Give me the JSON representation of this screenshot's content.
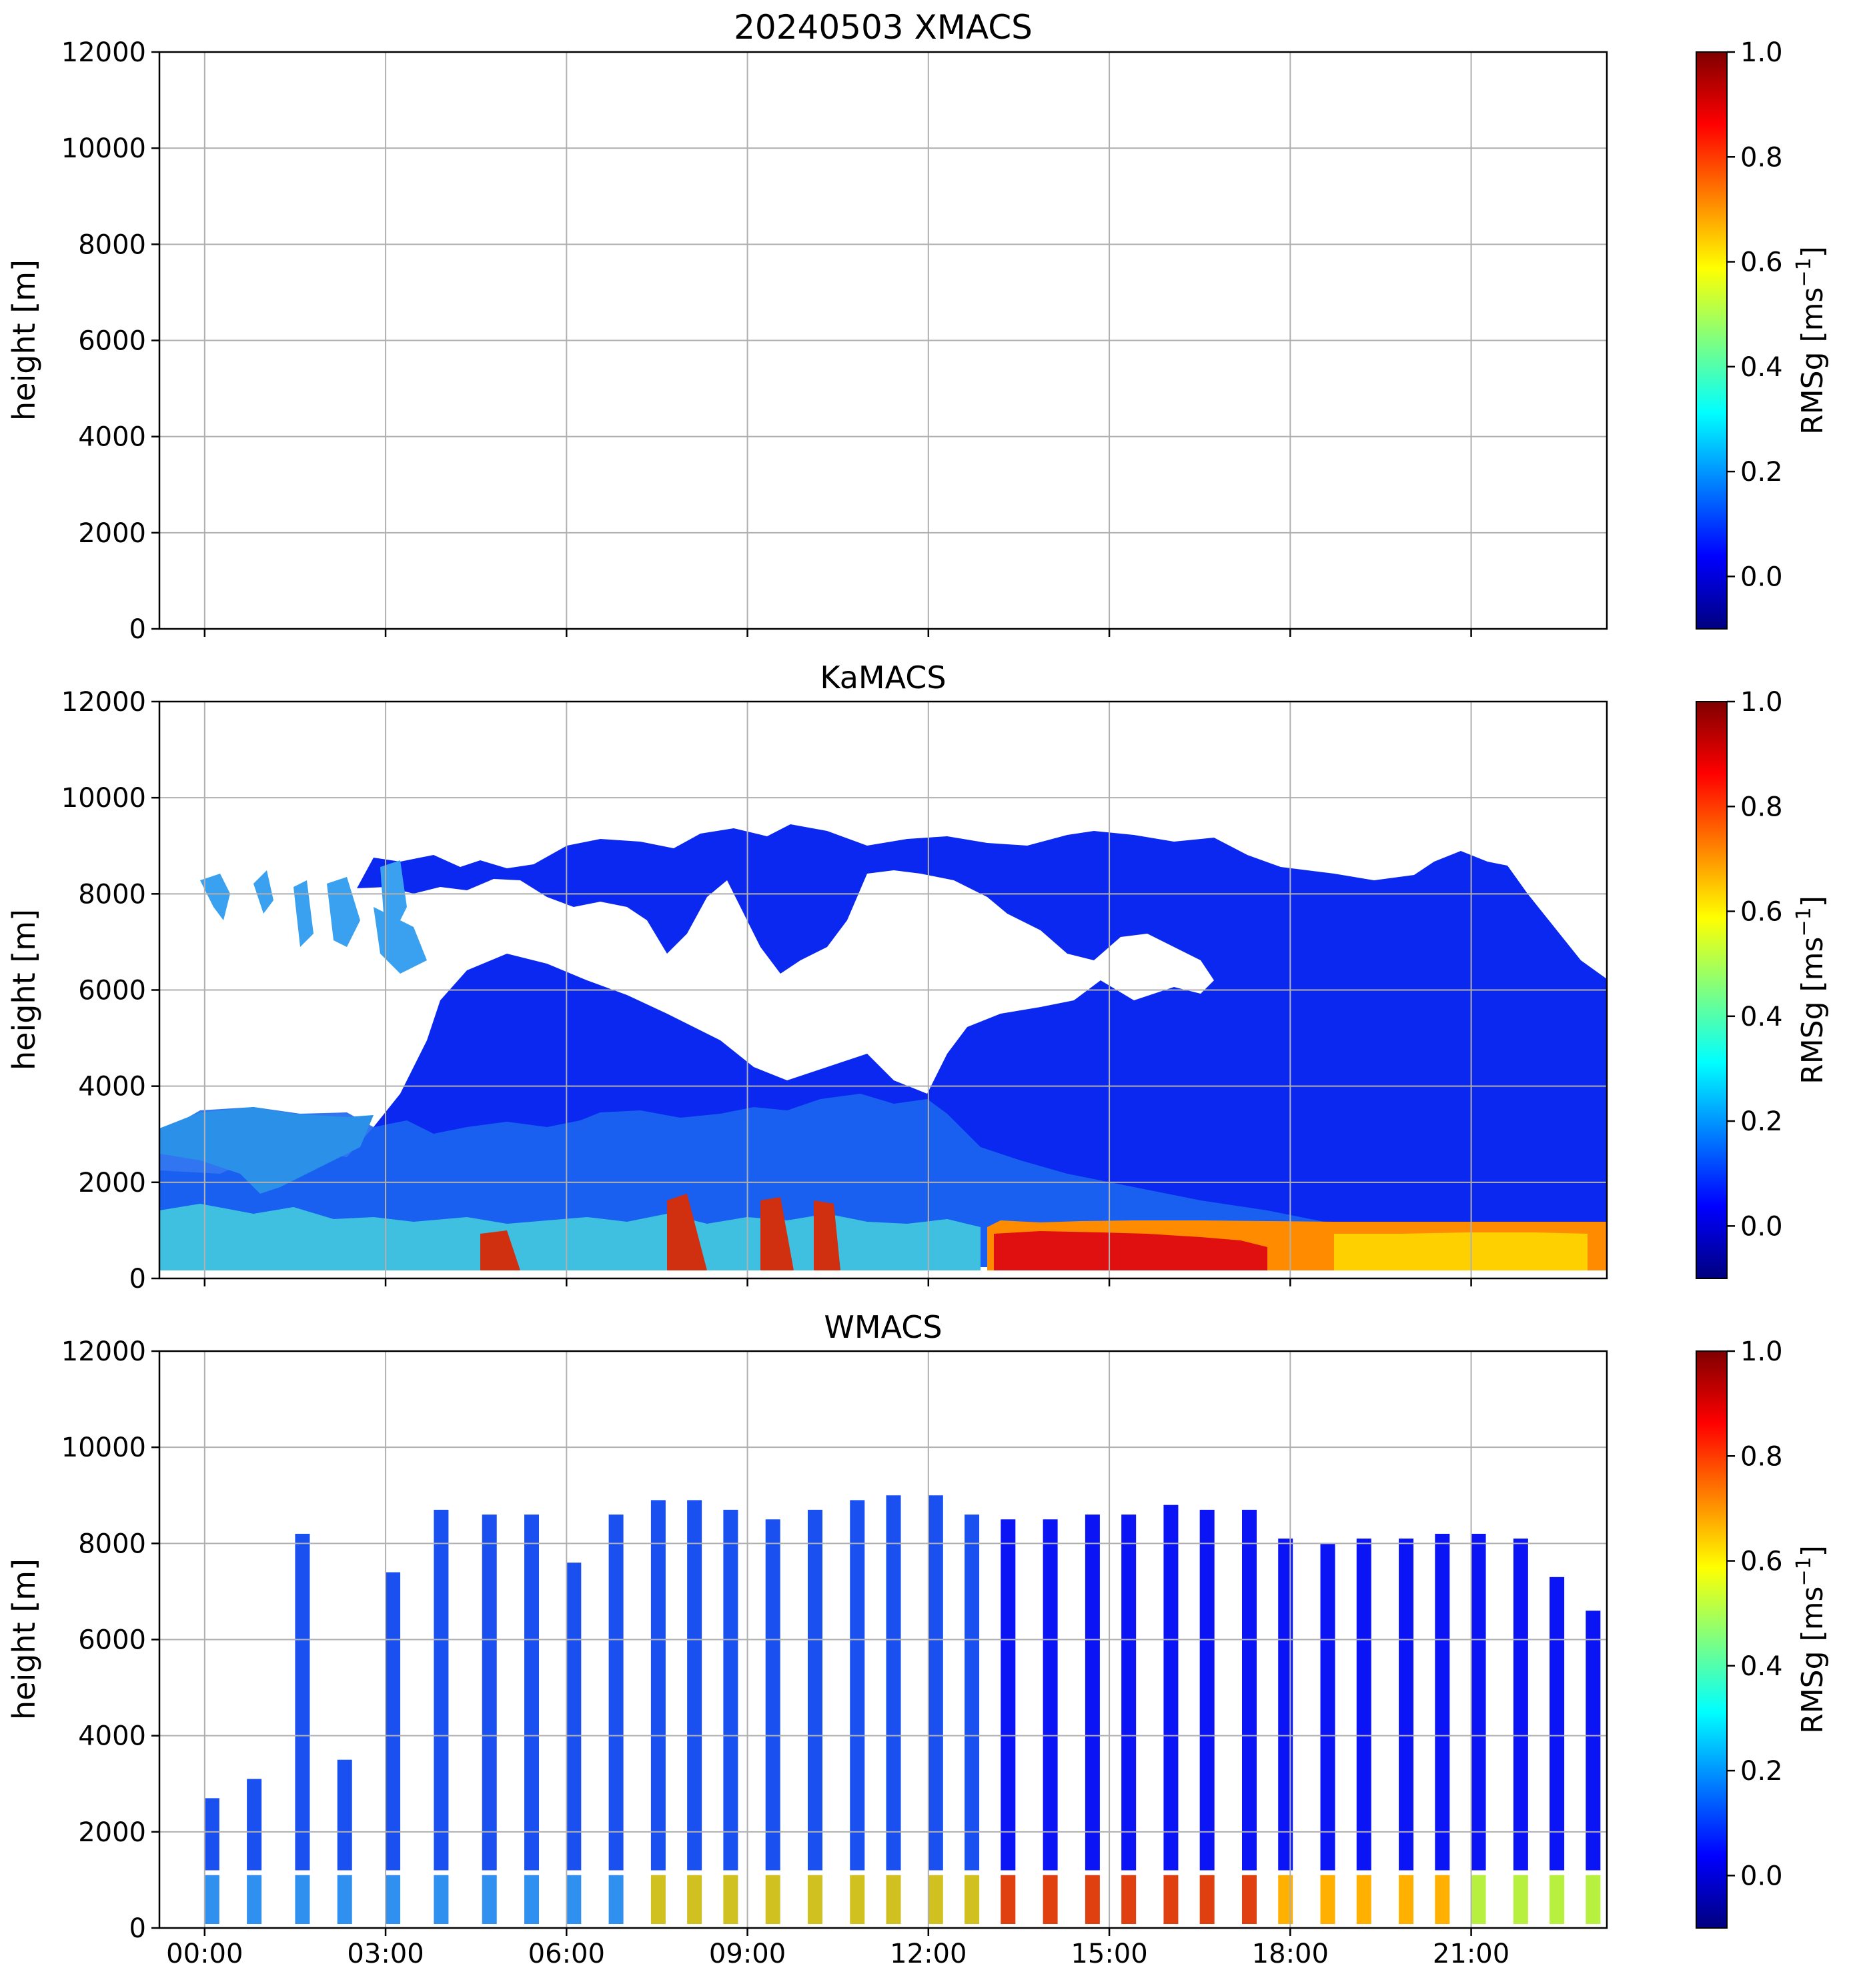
{
  "figure": {
    "colormap": [
      "#00007f",
      "#0000ff",
      "#007fff",
      "#00ffff",
      "#7fff7f",
      "#ffff00",
      "#ff7f00",
      "#ff0000",
      "#7f0000"
    ],
    "colorbar": {
      "label_main": "RMSg [ms",
      "label_exp": "−1",
      "label_close": "]",
      "ticks": [
        "0.0",
        "0.2",
        "0.4",
        "0.6",
        "0.8",
        "1.0"
      ],
      "range": [
        -0.1,
        1.0
      ]
    },
    "xticks": [
      "00:00",
      "03:00",
      "06:00",
      "09:00",
      "12:00",
      "15:00",
      "18:00",
      "21:00"
    ]
  },
  "chart_data": [
    {
      "type": "heatmap",
      "title": "20240503 XMACS",
      "ylabel": "height [m]",
      "xlabel": "",
      "yticks": [
        "0",
        "2000",
        "4000",
        "6000",
        "8000",
        "10000",
        "12000"
      ],
      "ylim": [
        0,
        12000
      ],
      "xlim_hours": [
        -0.75,
        23.25
      ],
      "grid": true,
      "data_present": false
    },
    {
      "type": "heatmap",
      "title": "KaMACS",
      "ylabel": "height [m]",
      "xlabel": "",
      "yticks": [
        "0",
        "2000",
        "4000",
        "6000",
        "8000",
        "10000",
        "12000"
      ],
      "ylim": [
        0,
        12000
      ],
      "xlim_hours": [
        -0.75,
        23.25
      ],
      "grid": true,
      "data_present": true
    },
    {
      "type": "heatmap",
      "title": "WMACS",
      "ylabel": "height [m]",
      "xlabel": "",
      "yticks": [
        "0",
        "2000",
        "4000",
        "6000",
        "8000",
        "10000",
        "12000"
      ],
      "ylim": [
        0,
        12000
      ],
      "xlim_hours": [
        -0.75,
        23.25
      ],
      "grid": true,
      "data_present": true
    }
  ]
}
